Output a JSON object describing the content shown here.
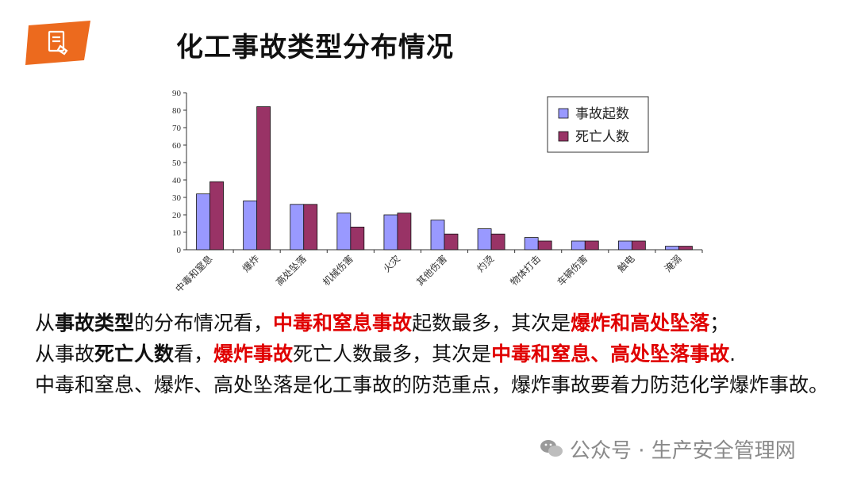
{
  "slide": {
    "title": "化工事故类型分布情况"
  },
  "icons": {
    "logo": "document-hand-icon",
    "watermark": "wechat-icon"
  },
  "colors": {
    "logo_orange": "#ec6a1e",
    "series_incidents": "#9999ff",
    "series_deaths": "#993366",
    "highlight_red": "#e00000"
  },
  "chart_data": {
    "type": "bar",
    "categories": [
      "中毒和窒息",
      "爆炸",
      "高处坠落",
      "机械伤害",
      "火灾",
      "其他伤害",
      "灼烫",
      "物体打击",
      "车辆伤害",
      "触电",
      "淹溺"
    ],
    "series": [
      {
        "name": "事故起数",
        "values": [
          32,
          28,
          26,
          21,
          20,
          17,
          12,
          7,
          5,
          5,
          2
        ]
      },
      {
        "name": "死亡人数",
        "values": [
          39,
          82,
          26,
          13,
          21,
          9,
          9,
          5,
          5,
          5,
          2
        ]
      }
    ],
    "yticks": [
      "0",
      "10",
      "20",
      "30",
      "40",
      "50",
      "60",
      "70",
      "80",
      "90"
    ],
    "ylim": [
      0,
      90
    ],
    "grid": false,
    "legend_position": "top-right"
  },
  "body": {
    "line1": {
      "p1": "从",
      "p2": "事故类型",
      "p3": "的分布情况看，",
      "p4": "中毒和窒息事故",
      "p5": "起数最多，其次是",
      "p6": "爆炸和高处坠落",
      "p7": "；"
    },
    "line2": {
      "p1": "从事故",
      "p2": "死亡人数",
      "p3": "看，",
      "p4": "爆炸事故",
      "p5": "死亡人数最多，其次是",
      "p6": "中毒和窒息、高处坠落事故",
      "p7": "."
    },
    "line3": "中毒和窒息、爆炸、高处坠落是化工事故的防范重点，爆炸事故要着力防范化学爆炸事故。"
  },
  "watermark": {
    "text": "公众号 · 生产安全管理网"
  }
}
